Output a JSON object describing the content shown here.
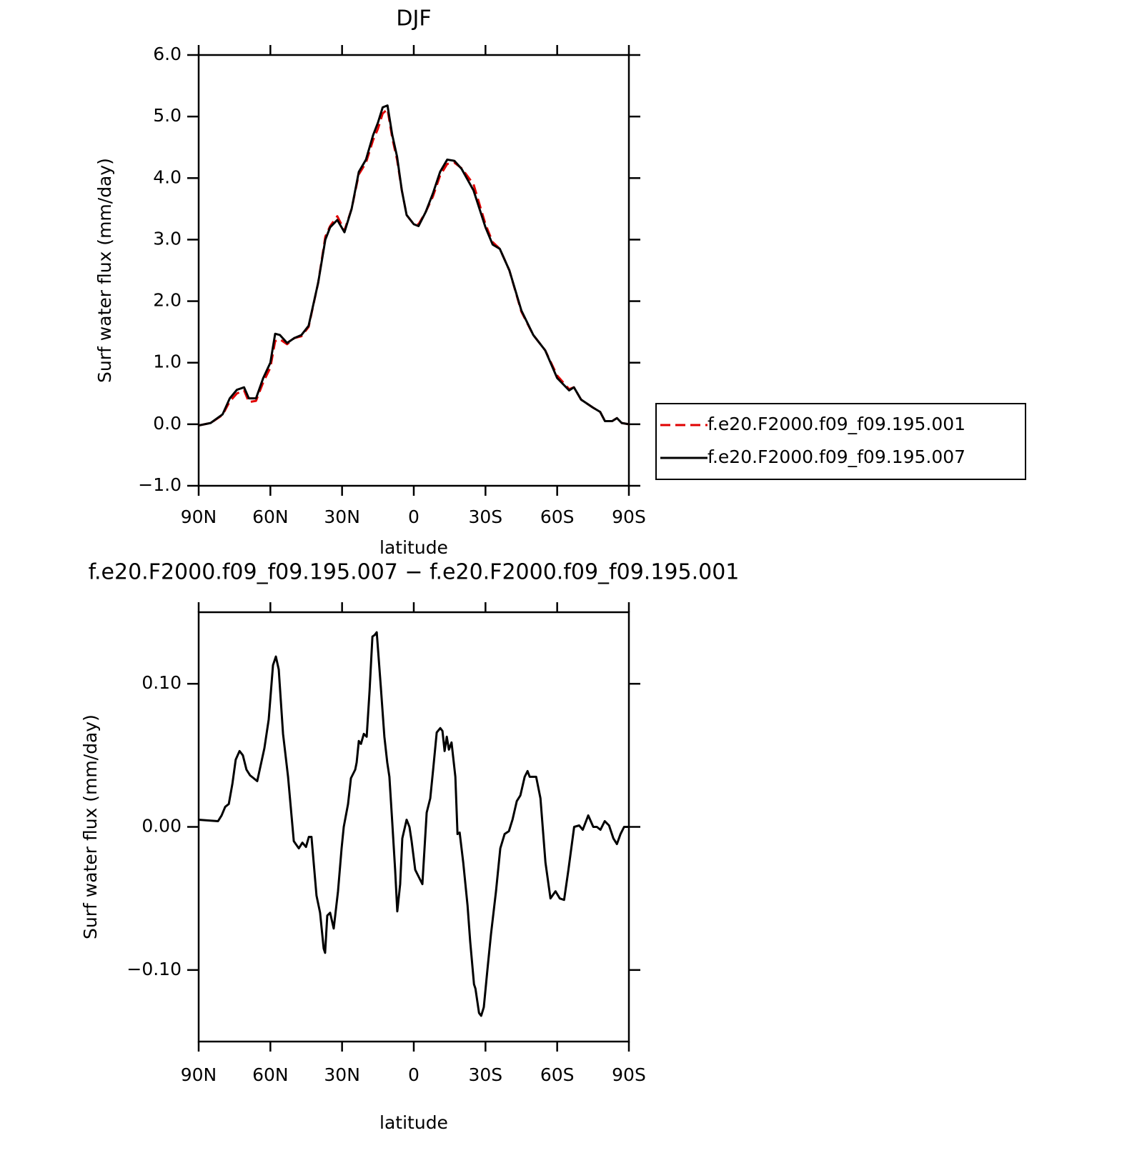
{
  "chart_data": [
    {
      "type": "line",
      "title": "DJF",
      "xlabel": "latitude",
      "ylabel": "Surf water flux (mm/day)",
      "x": [
        90,
        85,
        80,
        77,
        74,
        71,
        69,
        66,
        63,
        60,
        58,
        56,
        53,
        50,
        47,
        44,
        40,
        37,
        35,
        32,
        29,
        26,
        23,
        20,
        17,
        15,
        13,
        11,
        9,
        7,
        5,
        3,
        0,
        -2,
        -5,
        -8,
        -11,
        -14,
        -17,
        -20,
        -25,
        -30,
        -33,
        -36,
        -40,
        -45,
        -50,
        -55,
        -60,
        -65,
        -67,
        -70,
        -75,
        -78,
        -80,
        -83,
        -85,
        -87,
        -90
      ],
      "series": [
        {
          "name": "f.e20.F2000.f09_f09.195.001",
          "color": "#e00000",
          "style": "dashed",
          "values": [
            -0.02,
            0.02,
            0.15,
            0.37,
            0.5,
            0.55,
            0.36,
            0.38,
            0.68,
            0.92,
            1.35,
            1.38,
            1.3,
            1.4,
            1.43,
            1.58,
            2.3,
            3.05,
            3.22,
            3.38,
            3.15,
            3.5,
            4.06,
            4.25,
            4.62,
            4.8,
            5.05,
            5.12,
            4.65,
            4.3,
            3.8,
            3.4,
            3.25,
            3.25,
            3.45,
            3.7,
            4.04,
            4.23,
            4.25,
            4.16,
            3.9,
            3.25,
            2.96,
            2.85,
            2.5,
            1.83,
            1.45,
            1.2,
            0.79,
            0.57,
            0.6,
            0.4,
            0.27,
            0.2,
            0.05,
            0.05,
            0.1,
            0.02,
            0.0
          ]
        },
        {
          "name": "f.e20.F2000.f09_f09.195.007",
          "color": "#000000",
          "style": "solid",
          "values": [
            -0.02,
            0.02,
            0.16,
            0.42,
            0.56,
            0.6,
            0.42,
            0.42,
            0.75,
            1.0,
            1.47,
            1.45,
            1.32,
            1.4,
            1.45,
            1.6,
            2.3,
            3.0,
            3.2,
            3.32,
            3.12,
            3.5,
            4.1,
            4.3,
            4.7,
            4.9,
            5.15,
            5.18,
            4.7,
            4.35,
            3.8,
            3.4,
            3.25,
            3.22,
            3.45,
            3.75,
            4.1,
            4.3,
            4.28,
            4.15,
            3.8,
            3.2,
            2.92,
            2.85,
            2.5,
            1.85,
            1.45,
            1.2,
            0.75,
            0.55,
            0.6,
            0.4,
            0.27,
            0.2,
            0.05,
            0.05,
            0.1,
            0.02,
            0.0
          ]
        }
      ],
      "xlim": [
        90,
        -90
      ],
      "xticks": [
        {
          "value": 90,
          "label": "90N"
        },
        {
          "value": 60,
          "label": "60N"
        },
        {
          "value": 30,
          "label": "30N"
        },
        0,
        {
          "value": -30,
          "label": "30S"
        },
        {
          "value": -60,
          "label": "60S"
        },
        {
          "value": -90,
          "label": "90S"
        }
      ],
      "ylim": [
        -1,
        6
      ],
      "yticks": [
        {
          "value": -1,
          "label": "−1.0"
        },
        {
          "value": 0,
          "label": "0.0"
        },
        {
          "value": 1,
          "label": "1.0"
        },
        {
          "value": 2,
          "label": "2.0"
        },
        {
          "value": 3,
          "label": "3.0"
        },
        {
          "value": 4,
          "label": "4.0"
        },
        {
          "value": 5,
          "label": "5.0"
        },
        {
          "value": 6,
          "label": "6.0"
        }
      ],
      "legend": "right"
    },
    {
      "type": "line",
      "title": "f.e20.F2000.f09_f09.195.007 − f.e20.F2000.f09_f09.195.001",
      "xlabel": "latitude",
      "ylabel": "Surf water flux (mm/day)",
      "x": [
        90,
        81.9,
        80.4,
        78.9,
        77.4,
        75.9,
        74.5,
        72.9,
        71.5,
        70,
        68.5,
        67,
        65.5,
        62.5,
        60.7,
        58.9,
        57.7,
        56.5,
        54.7,
        52.6,
        50.2,
        48.1,
        46.6,
        45.1,
        43.9,
        42.8,
        40.7,
        39.2,
        37.7,
        37.1,
        36.2,
        35,
        33.5,
        31.7,
        30.2,
        29.3,
        27.5,
        26.3,
        24.5,
        23.9,
        23,
        22.1,
        20.9,
        19.7,
        18.5,
        17.3,
        16.4,
        15.5,
        13.8,
        12.3,
        11.1,
        10.2,
        9,
        7.8,
        6.9,
        5.7,
        4.8,
        3,
        1.8,
        0.9,
        -0.6,
        -2.1,
        -3.6,
        -5.4,
        -6.9,
        -8.1,
        -9.6,
        -11.1,
        -12,
        -12.9,
        -13.8,
        -14.7,
        -15.8,
        -17.4,
        -18.3,
        -19.2,
        -20.7,
        -22.5,
        -23.6,
        -25.2,
        -25.8,
        -27.3,
        -28.2,
        -29.3,
        -30.8,
        -32.3,
        -34.4,
        -36.2,
        -38,
        -39.8,
        -41.3,
        -43.1,
        -44.6,
        -46.4,
        -47.6,
        -48.5,
        -51.2,
        -53,
        -55.1,
        -57.2,
        -59.3,
        -61.1,
        -62.9,
        -64.7,
        -67.1,
        -69.2,
        -70.7,
        -73,
        -75.1,
        -76.6,
        -78.1,
        -79.9,
        -81.7,
        -83.5,
        -85,
        -86.5,
        -88,
        -90
      ],
      "series": [
        {
          "name": "f.e20.F2000.f09_f09.195.007 − f.e20.F2000.f09_f09.195.001",
          "color": "#000000",
          "style": "solid",
          "values": [
            0.005,
            0.004,
            0.008,
            0.014,
            0.016,
            0.03,
            0.047,
            0.053,
            0.05,
            0.04,
            0.036,
            0.034,
            0.032,
            0.055,
            0.075,
            0.113,
            0.119,
            0.11,
            0.065,
            0.035,
            -0.01,
            -0.015,
            -0.011,
            -0.014,
            -0.007,
            -0.007,
            -0.048,
            -0.06,
            -0.085,
            -0.088,
            -0.062,
            -0.06,
            -0.071,
            -0.045,
            -0.015,
            0.0,
            0.016,
            0.034,
            0.04,
            0.045,
            0.06,
            0.058,
            0.065,
            0.063,
            0.095,
            0.133,
            0.134,
            0.136,
            0.098,
            0.063,
            0.045,
            0.035,
            0.003,
            -0.03,
            -0.059,
            -0.04,
            -0.008,
            0.005,
            0.0,
            -0.01,
            -0.03,
            -0.035,
            -0.04,
            0.01,
            0.02,
            0.04,
            0.066,
            0.069,
            0.067,
            0.053,
            0.063,
            0.054,
            0.059,
            0.035,
            -0.005,
            -0.004,
            -0.025,
            -0.055,
            -0.08,
            -0.11,
            -0.113,
            -0.13,
            -0.132,
            -0.126,
            -0.1,
            -0.075,
            -0.045,
            -0.015,
            -0.005,
            -0.003,
            0.005,
            0.018,
            0.022,
            0.035,
            0.039,
            0.035,
            0.035,
            0.02,
            -0.025,
            -0.05,
            -0.045,
            -0.05,
            -0.051,
            -0.03,
            0.0,
            0.001,
            -0.002,
            0.008,
            0.0,
            0.0,
            -0.002,
            0.004,
            0.001,
            -0.008,
            -0.012,
            -0.005,
            0.0,
            0.0
          ]
        }
      ],
      "xlim": [
        90,
        -90
      ],
      "xticks": [
        {
          "value": 90,
          "label": "90N"
        },
        {
          "value": 60,
          "label": "60N"
        },
        {
          "value": 30,
          "label": "30N"
        },
        0,
        {
          "value": -30,
          "label": "30S"
        },
        {
          "value": -60,
          "label": "60S"
        },
        {
          "value": -90,
          "label": "90S"
        }
      ],
      "ylim": [
        -0.15,
        0.15
      ],
      "yticks": [
        {
          "value": -0.1,
          "label": "−0.10"
        },
        {
          "value": 0,
          "label": "0.00"
        },
        {
          "value": 0.1,
          "label": "0.10"
        }
      ]
    }
  ]
}
